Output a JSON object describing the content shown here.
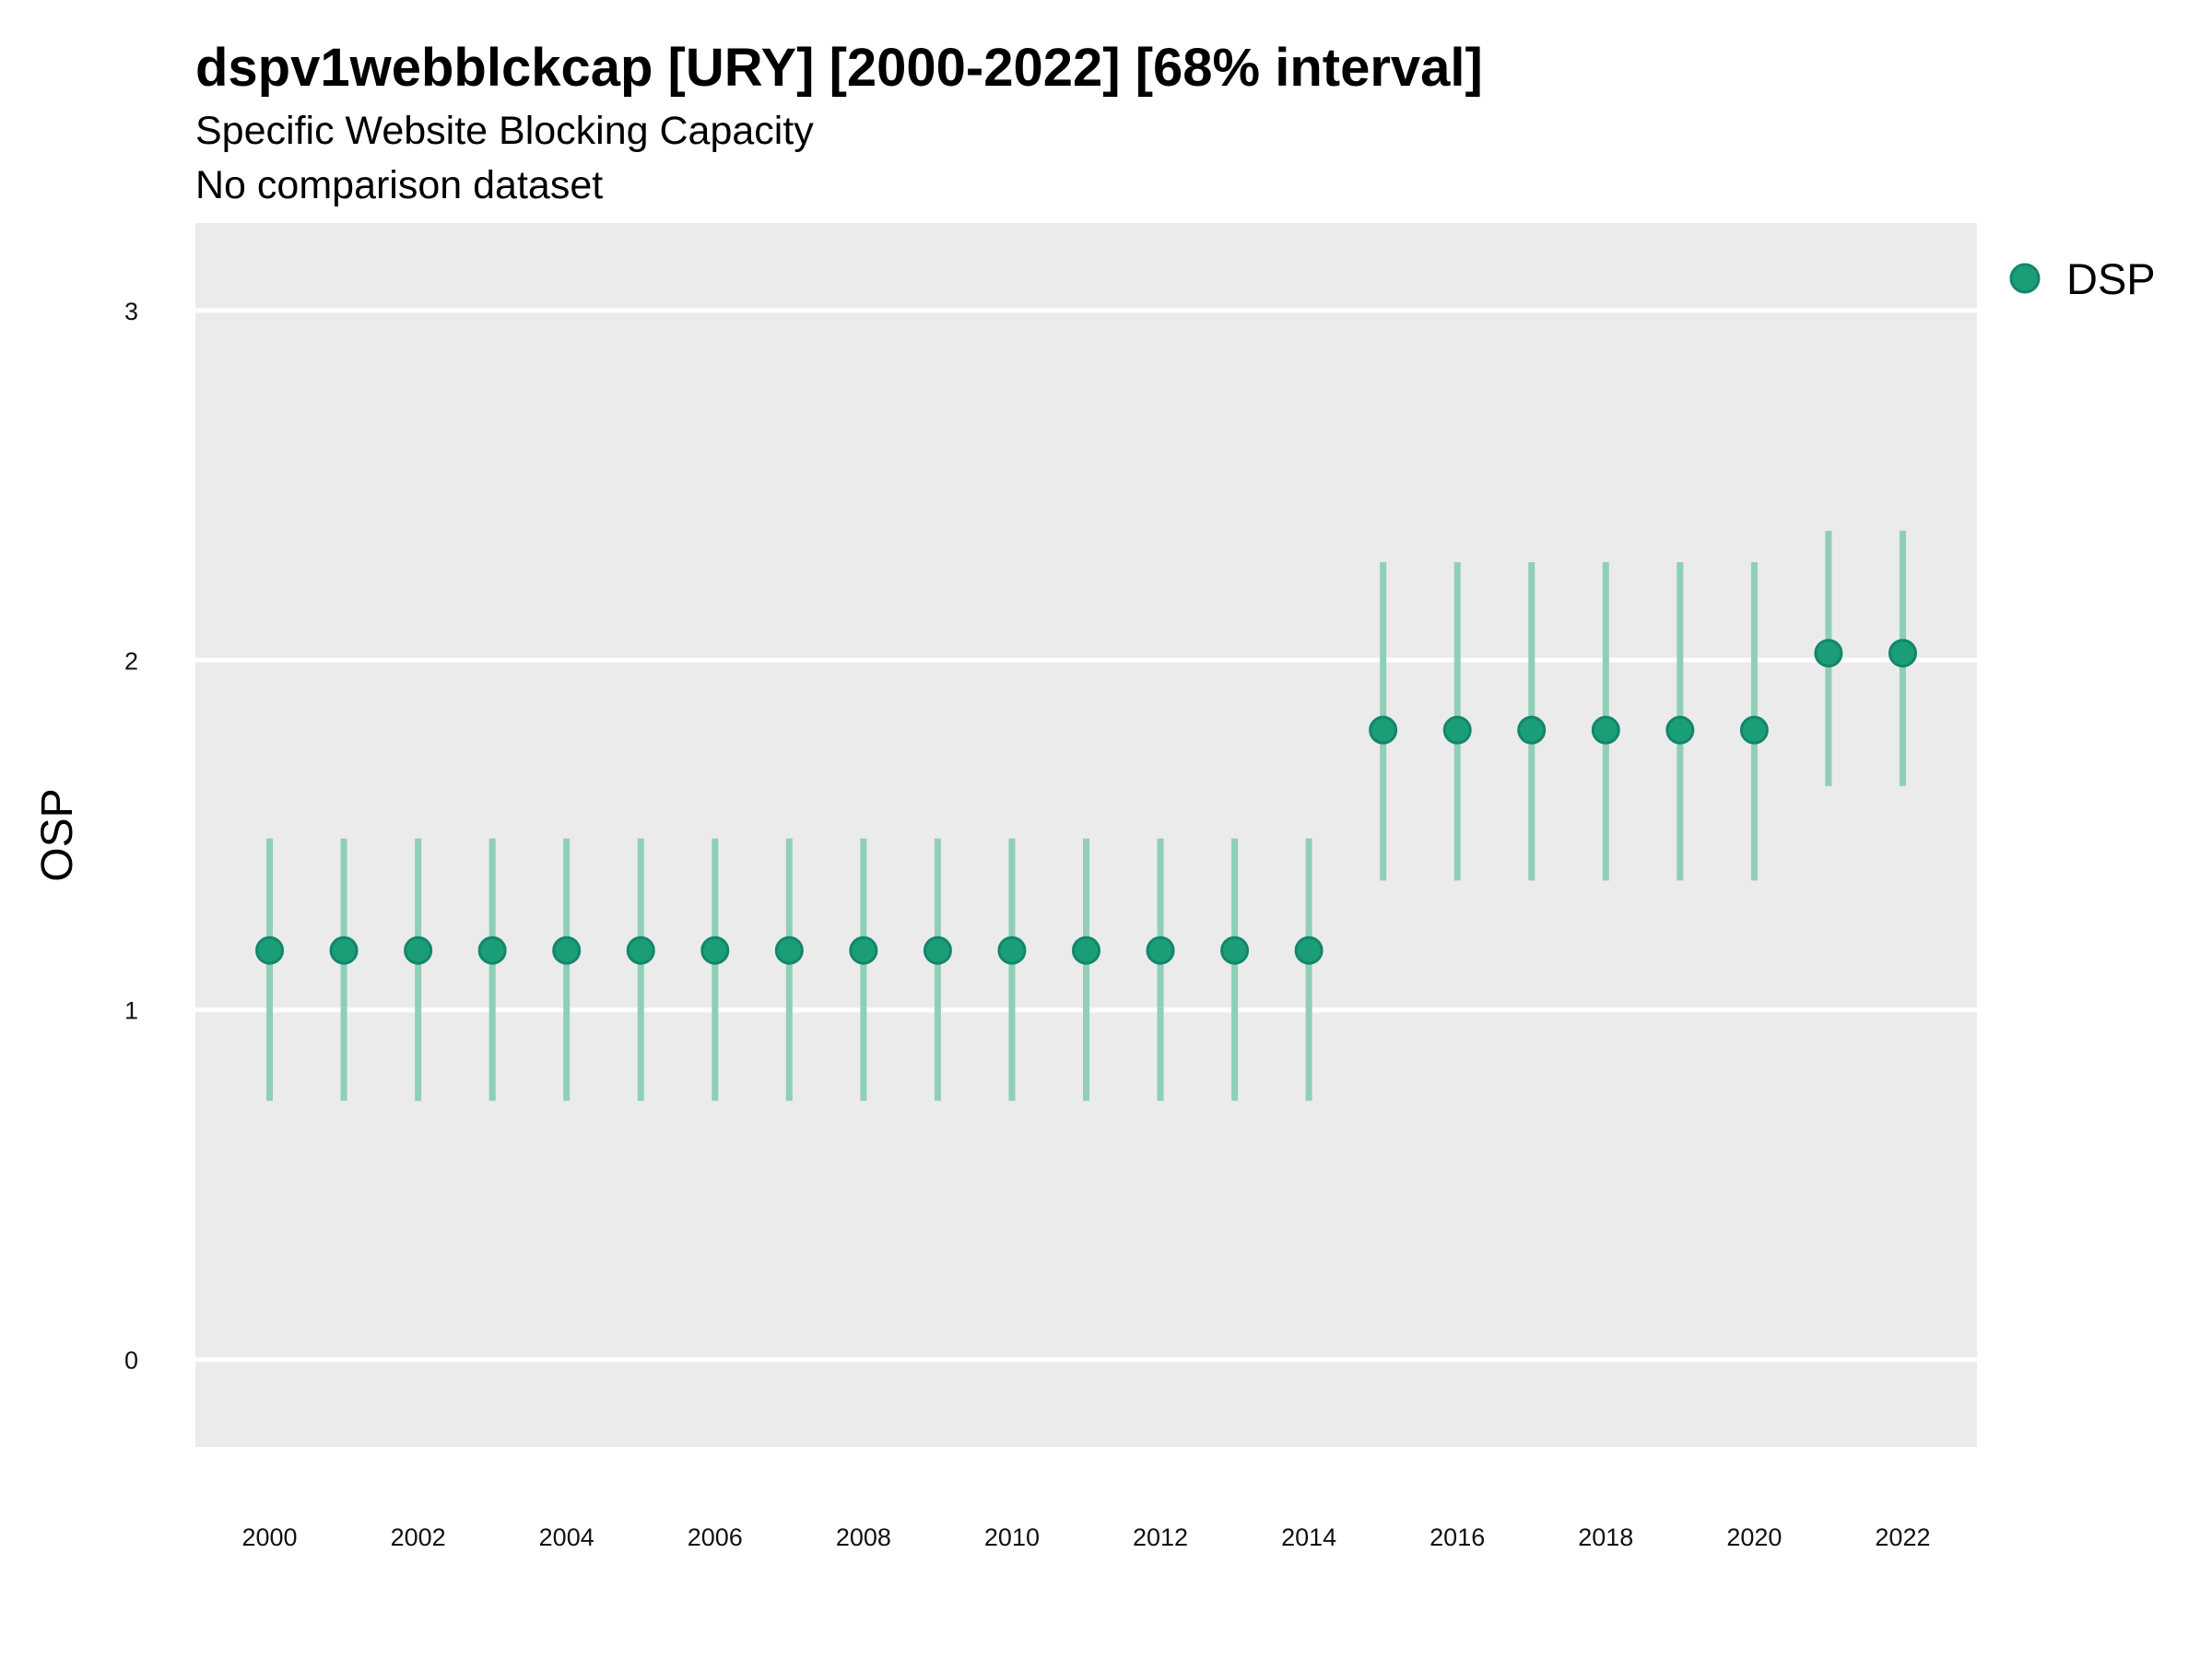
{
  "chart_data": {
    "type": "scatter",
    "title": "dspv1webblckcap [URY] [2000-2022] [68% interval]",
    "subtitle": "Specific Website Blocking Capacity",
    "caption_line": "No comparison dataset",
    "ylabel": "OSP",
    "xlabel": "",
    "ylim": [
      -0.25,
      3.25
    ],
    "xlim": [
      1999.0,
      2023.0
    ],
    "y_ticks": [
      0,
      1,
      2,
      3
    ],
    "x_ticks": [
      2000,
      2002,
      2004,
      2006,
      2008,
      2010,
      2012,
      2014,
      2016,
      2018,
      2020,
      2022
    ],
    "grid": "horizontal-major",
    "legend_position": "right-top",
    "colors": {
      "point": "#1b9e77",
      "interval": "#8ecfb8",
      "panel": "#ebebeb",
      "grid": "#ffffff"
    },
    "series": [
      {
        "name": "DSP",
        "points": [
          {
            "x": 2000,
            "y": 1.17,
            "lower": 0.74,
            "upper": 1.49
          },
          {
            "x": 2001,
            "y": 1.17,
            "lower": 0.74,
            "upper": 1.49
          },
          {
            "x": 2002,
            "y": 1.17,
            "lower": 0.74,
            "upper": 1.49
          },
          {
            "x": 2003,
            "y": 1.17,
            "lower": 0.74,
            "upper": 1.49
          },
          {
            "x": 2004,
            "y": 1.17,
            "lower": 0.74,
            "upper": 1.49
          },
          {
            "x": 2005,
            "y": 1.17,
            "lower": 0.74,
            "upper": 1.49
          },
          {
            "x": 2006,
            "y": 1.17,
            "lower": 0.74,
            "upper": 1.49
          },
          {
            "x": 2007,
            "y": 1.17,
            "lower": 0.74,
            "upper": 1.49
          },
          {
            "x": 2008,
            "y": 1.17,
            "lower": 0.74,
            "upper": 1.49
          },
          {
            "x": 2009,
            "y": 1.17,
            "lower": 0.74,
            "upper": 1.49
          },
          {
            "x": 2010,
            "y": 1.17,
            "lower": 0.74,
            "upper": 1.49
          },
          {
            "x": 2011,
            "y": 1.17,
            "lower": 0.74,
            "upper": 1.49
          },
          {
            "x": 2012,
            "y": 1.17,
            "lower": 0.74,
            "upper": 1.49
          },
          {
            "x": 2013,
            "y": 1.17,
            "lower": 0.74,
            "upper": 1.49
          },
          {
            "x": 2014,
            "y": 1.17,
            "lower": 0.74,
            "upper": 1.49
          },
          {
            "x": 2015,
            "y": 1.8,
            "lower": 1.37,
            "upper": 2.28
          },
          {
            "x": 2016,
            "y": 1.8,
            "lower": 1.37,
            "upper": 2.28
          },
          {
            "x": 2017,
            "y": 1.8,
            "lower": 1.37,
            "upper": 2.28
          },
          {
            "x": 2018,
            "y": 1.8,
            "lower": 1.37,
            "upper": 2.28
          },
          {
            "x": 2019,
            "y": 1.8,
            "lower": 1.37,
            "upper": 2.28
          },
          {
            "x": 2020,
            "y": 1.8,
            "lower": 1.37,
            "upper": 2.28
          },
          {
            "x": 2021,
            "y": 2.02,
            "lower": 1.64,
            "upper": 2.37
          },
          {
            "x": 2022,
            "y": 2.02,
            "lower": 1.64,
            "upper": 2.37
          }
        ]
      }
    ]
  }
}
